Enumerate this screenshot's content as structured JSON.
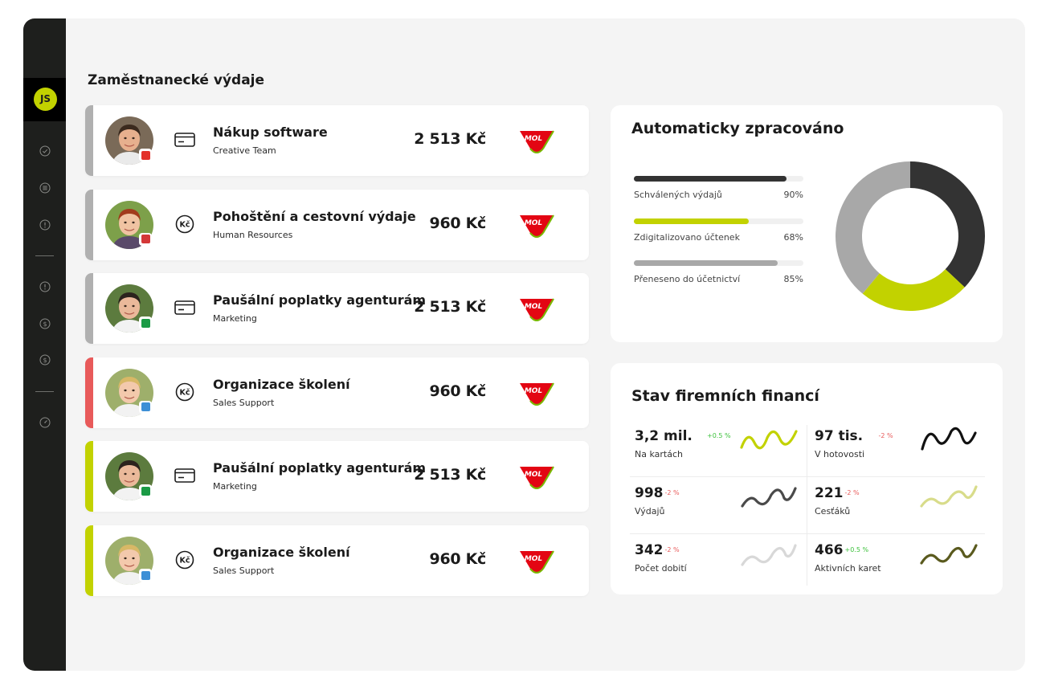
{
  "user": {
    "initials": "JS"
  },
  "colors": {
    "accent_lime": "#c2d200",
    "dark": "#333333",
    "gray": "#a8a8a8",
    "sidebar": "#1e1f1d",
    "bar_gray": "#b0b0b0",
    "bar_red": "#e85a5a",
    "positive": "#3cc13b",
    "negative": "#e85a5a"
  },
  "section": {
    "title": "Zaměstnanecké výdaje"
  },
  "expenses": [
    {
      "name": "Nákup software",
      "team": "Creative Team",
      "amount": "2 513 Kč",
      "payment_icon": "card-icon",
      "status": "gray",
      "badge_icon": "adobe-icon",
      "merchant": "MOL"
    },
    {
      "name": "Pohoštění a cestovní výdaje",
      "team": "Human Resources",
      "amount": "960 Kč",
      "payment_icon": "czk-coin-icon",
      "status": "gray",
      "badge_icon": "pocket-icon",
      "merchant": "MOL"
    },
    {
      "name": "Paušální poplatky agenturám",
      "team": "Marketing",
      "amount": "2 513 Kč",
      "payment_icon": "card-icon",
      "status": "gray",
      "badge_icon": "sheet-icon",
      "merchant": "MOL"
    },
    {
      "name": "Organizace školení",
      "team": "Sales Support",
      "amount": "960 Kč",
      "payment_icon": "czk-coin-icon",
      "status": "red",
      "badge_icon": "people-icon",
      "merchant": "MOL"
    },
    {
      "name": "Paušální poplatky agenturám",
      "team": "Marketing",
      "amount": "2 513 Kč",
      "payment_icon": "card-icon",
      "status": "lime",
      "badge_icon": "sheet-icon",
      "merchant": "MOL"
    },
    {
      "name": "Organizace školení",
      "team": "Sales Support",
      "amount": "960 Kč",
      "payment_icon": "czk-coin-icon",
      "status": "lime",
      "badge_icon": "people-icon",
      "merchant": "MOL"
    }
  ],
  "auto": {
    "title": "Automaticky zpracováno",
    "bars": [
      {
        "label": "Schválených výdajů",
        "pct_text": "90%",
        "value": 0.9,
        "color": "#333333"
      },
      {
        "label": "Zdigitalizovano účtenek",
        "pct_text": "68%",
        "value": 0.68,
        "color": "#c2d200"
      },
      {
        "label": "Přeneseno do účetnictví",
        "pct_text": "85%",
        "value": 0.85,
        "color": "#a8a8a8"
      }
    ],
    "donut": [
      {
        "value": 0.37,
        "color": "#333333"
      },
      {
        "value": 0.24,
        "color": "#c2d200"
      },
      {
        "value": 0.39,
        "color": "#a8a8a8"
      }
    ]
  },
  "finance": {
    "title": "Stav firemních financí",
    "stats": [
      {
        "value": "3,2 mil.",
        "change": "+0.5 %",
        "direction": "up",
        "label": "Na kartách",
        "spark_color": "#c2d200"
      },
      {
        "value": "97 tis.",
        "change": "-2 %",
        "direction": "down",
        "label": "V hotovosti",
        "spark_color": "#111111"
      },
      {
        "value": "998",
        "change": "-2 %",
        "direction": "down",
        "label": "Výdajů",
        "spark_color": "#4a4a4a"
      },
      {
        "value": "221",
        "change": "-2 %",
        "direction": "down",
        "label": "Cesťáků",
        "spark_color": "#d8dc8a"
      },
      {
        "value": "342",
        "change": "-2 %",
        "direction": "down",
        "label": "Počet dobití",
        "spark_color": "#d8d8d8"
      },
      {
        "value": "466",
        "change": "+0.5 %",
        "direction": "up",
        "label": "Aktivních karet",
        "spark_color": "#5a5a1e"
      }
    ]
  }
}
